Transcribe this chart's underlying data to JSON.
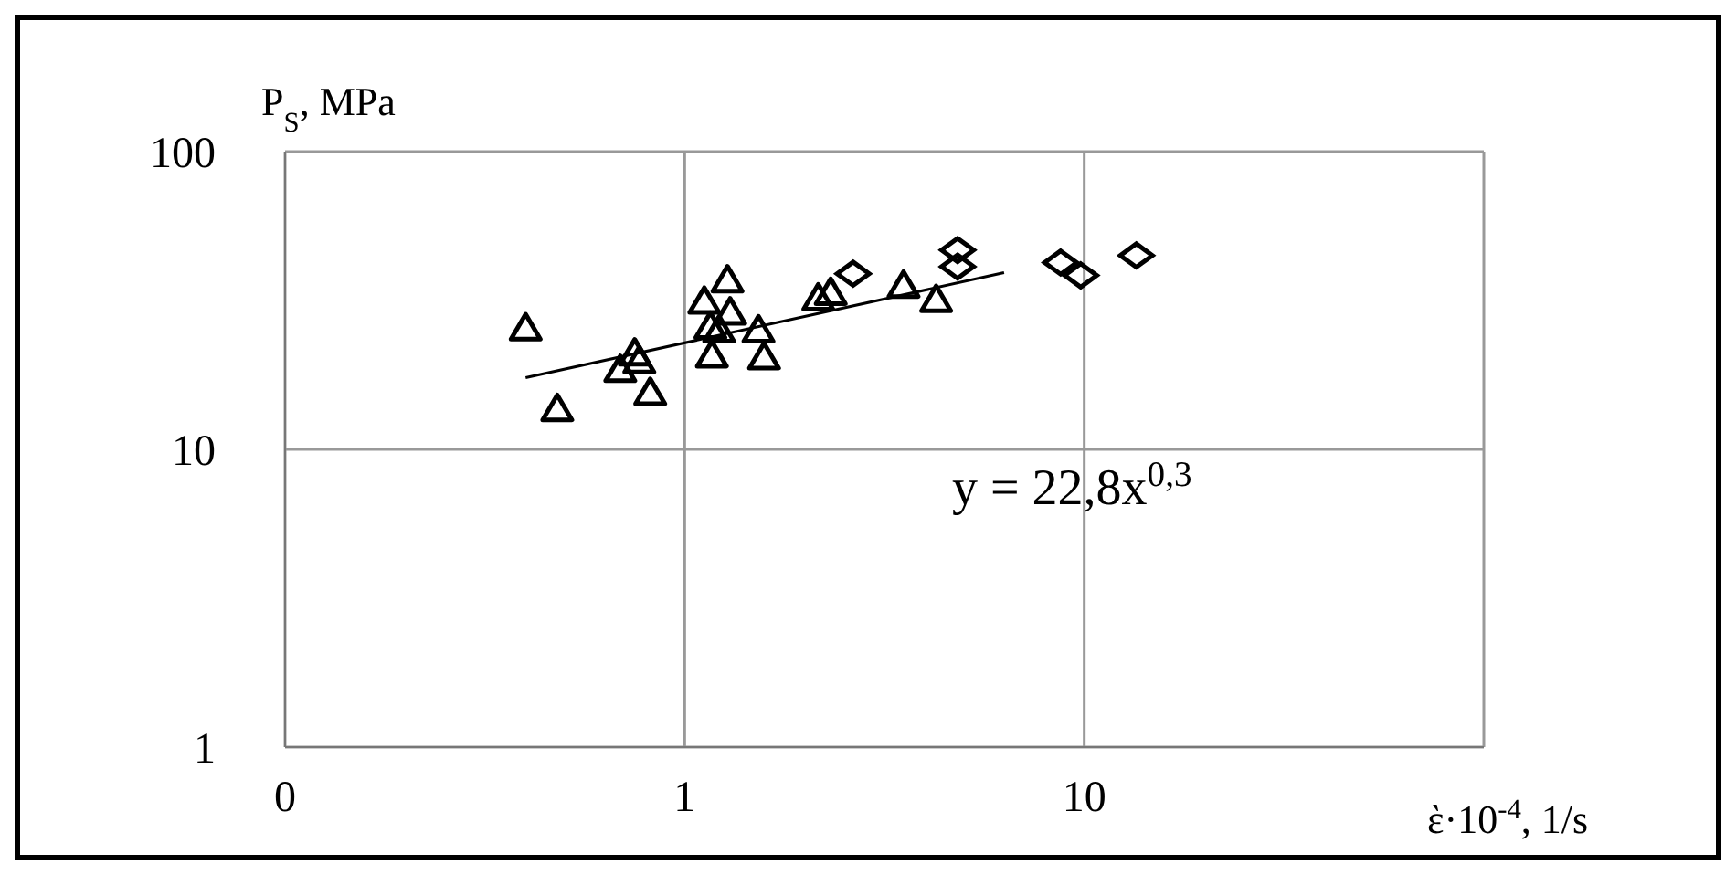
{
  "chart_data": {
    "type": "scatter",
    "xlabel": "ὲ·10$^{-4}$, 1/s",
    "ylabel": "P$_{S}$, MPa",
    "log": "xy",
    "grid": true,
    "xlim": [
      0.1,
      100
    ],
    "xticks": [
      {
        "value": 0.1,
        "label": "0"
      },
      1,
      10,
      {
        "value": 100,
        "label": null
      }
    ],
    "ylim": [
      1,
      100
    ],
    "yticks": [
      1,
      10,
      100
    ],
    "annotations": [
      "y = 22,8x$^{0,3}$"
    ],
    "series": [
      {
        "marker": "triangle",
        "color": "#000000",
        "x": [
          0.4,
          0.48,
          0.69,
          0.75,
          0.77,
          0.82,
          1.12,
          1.28,
          1.3,
          1.16,
          1.22,
          1.17,
          1.53,
          1.58,
          2.16,
          2.32,
          3.53,
          4.26
        ],
        "values": [
          25.4,
          13.6,
          18.4,
          20.9,
          19.7,
          15.4,
          31.2,
          36.8,
          28.7,
          25.7,
          25,
          20.6,
          25,
          20.3,
          32,
          33.4,
          35.3,
          31.6
        ]
      },
      {
        "marker": "diamond",
        "color": "#000000",
        "x": [
          2.64,
          4.82,
          4.82,
          8.73,
          9.8,
          13.5
        ],
        "values": [
          38.9,
          46.7,
          41.1,
          42.4,
          38.4,
          44.8
        ]
      },
      {
        "type": "line",
        "marker": "none",
        "color": "#000000",
        "x": [
          0.4,
          6.3
        ],
        "values": [
          17.4,
          39.2
        ]
      }
    ]
  }
}
